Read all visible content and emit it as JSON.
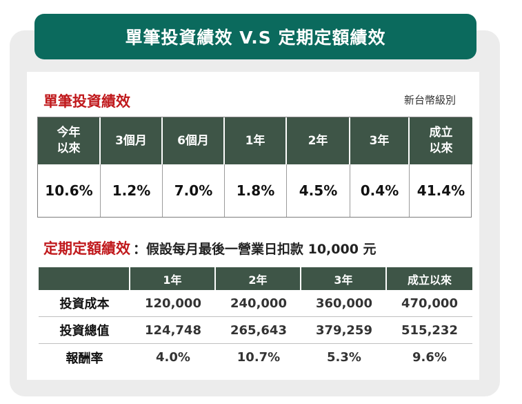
{
  "title": "單筆投資績效 V.S 定期定額績效",
  "single": {
    "heading": "單筆投資績效",
    "unit": "新台幣級別",
    "headers": [
      "今年\n以來",
      "3個月",
      "6個月",
      "1年",
      "2年",
      "3年",
      "成立\n以來"
    ],
    "values": [
      "10.6%",
      "1.2%",
      "7.0%",
      "1.8%",
      "4.5%",
      "0.4%",
      "41.4%"
    ]
  },
  "dca": {
    "heading": "定期定額績效",
    "note": "：假設每月最後一營業日扣款 10,000 元",
    "headers": [
      "",
      "1年",
      "2年",
      "3年",
      "成立以來"
    ],
    "rows": [
      [
        "投資成本",
        "120,000",
        "240,000",
        "360,000",
        "470,000"
      ],
      [
        "投資總值",
        "124,748",
        "265,643",
        "379,259",
        "515,232"
      ],
      [
        "報酬率",
        "4.0%",
        "10.7%",
        "5.3%",
        "9.6%"
      ]
    ]
  }
}
